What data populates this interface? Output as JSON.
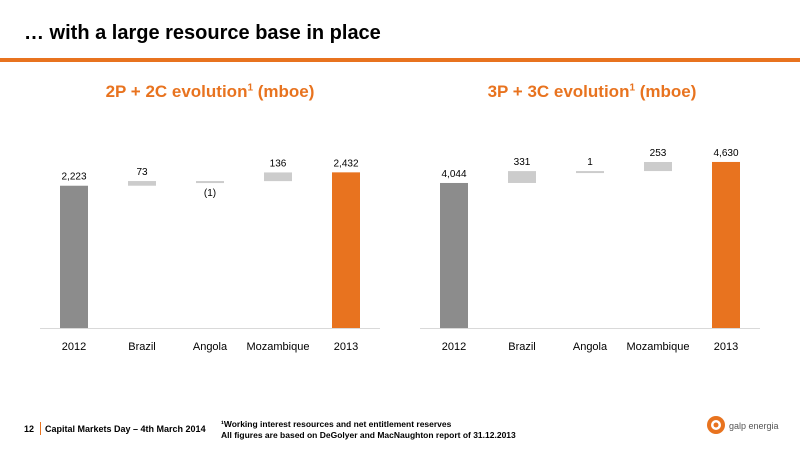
{
  "slide": {
    "title": "… with a large resource base in place",
    "page_number": "12",
    "event": "Capital Markets Day – 4th March 2014",
    "footnote_1": "¹Working interest resources and net entitlement reserves",
    "footnote_2": "All figures are based on DeGolyer and MacNaughton report of 31.12.2013",
    "logo_text": "galp energia"
  },
  "colors": {
    "accent": "#e8731f",
    "total_bar": "#8c8c8c",
    "delta_bar": "#cccccc",
    "axis": "#d9d9d9"
  },
  "chart_data": [
    {
      "type": "bar",
      "subtype": "waterfall",
      "title": "2P + 2C evolution",
      "title_superscript": "1",
      "title_unit": "(mboe)",
      "categories": [
        "2012",
        "Brazil",
        "Angola",
        "Mozambique",
        "2013"
      ],
      "values": [
        2223,
        73,
        -1,
        136,
        2432
      ],
      "labels": [
        "2,223",
        "73",
        "(1)",
        "136",
        "2,432"
      ],
      "kinds": [
        "start",
        "delta",
        "delta",
        "delta",
        "end"
      ],
      "ylim": [
        0,
        3250
      ]
    },
    {
      "type": "bar",
      "subtype": "waterfall",
      "title": "3P + 3C evolution",
      "title_superscript": "1",
      "title_unit": "(mboe)",
      "categories": [
        "2012",
        "Brazil",
        "Angola",
        "Mozambique",
        "2013"
      ],
      "values": [
        4044,
        331,
        1,
        253,
        4630
      ],
      "labels": [
        "4,044",
        "331",
        "1",
        "253",
        "4,630"
      ],
      "kinds": [
        "start",
        "delta",
        "delta",
        "delta",
        "end"
      ],
      "ylim": [
        0,
        5800
      ]
    }
  ]
}
